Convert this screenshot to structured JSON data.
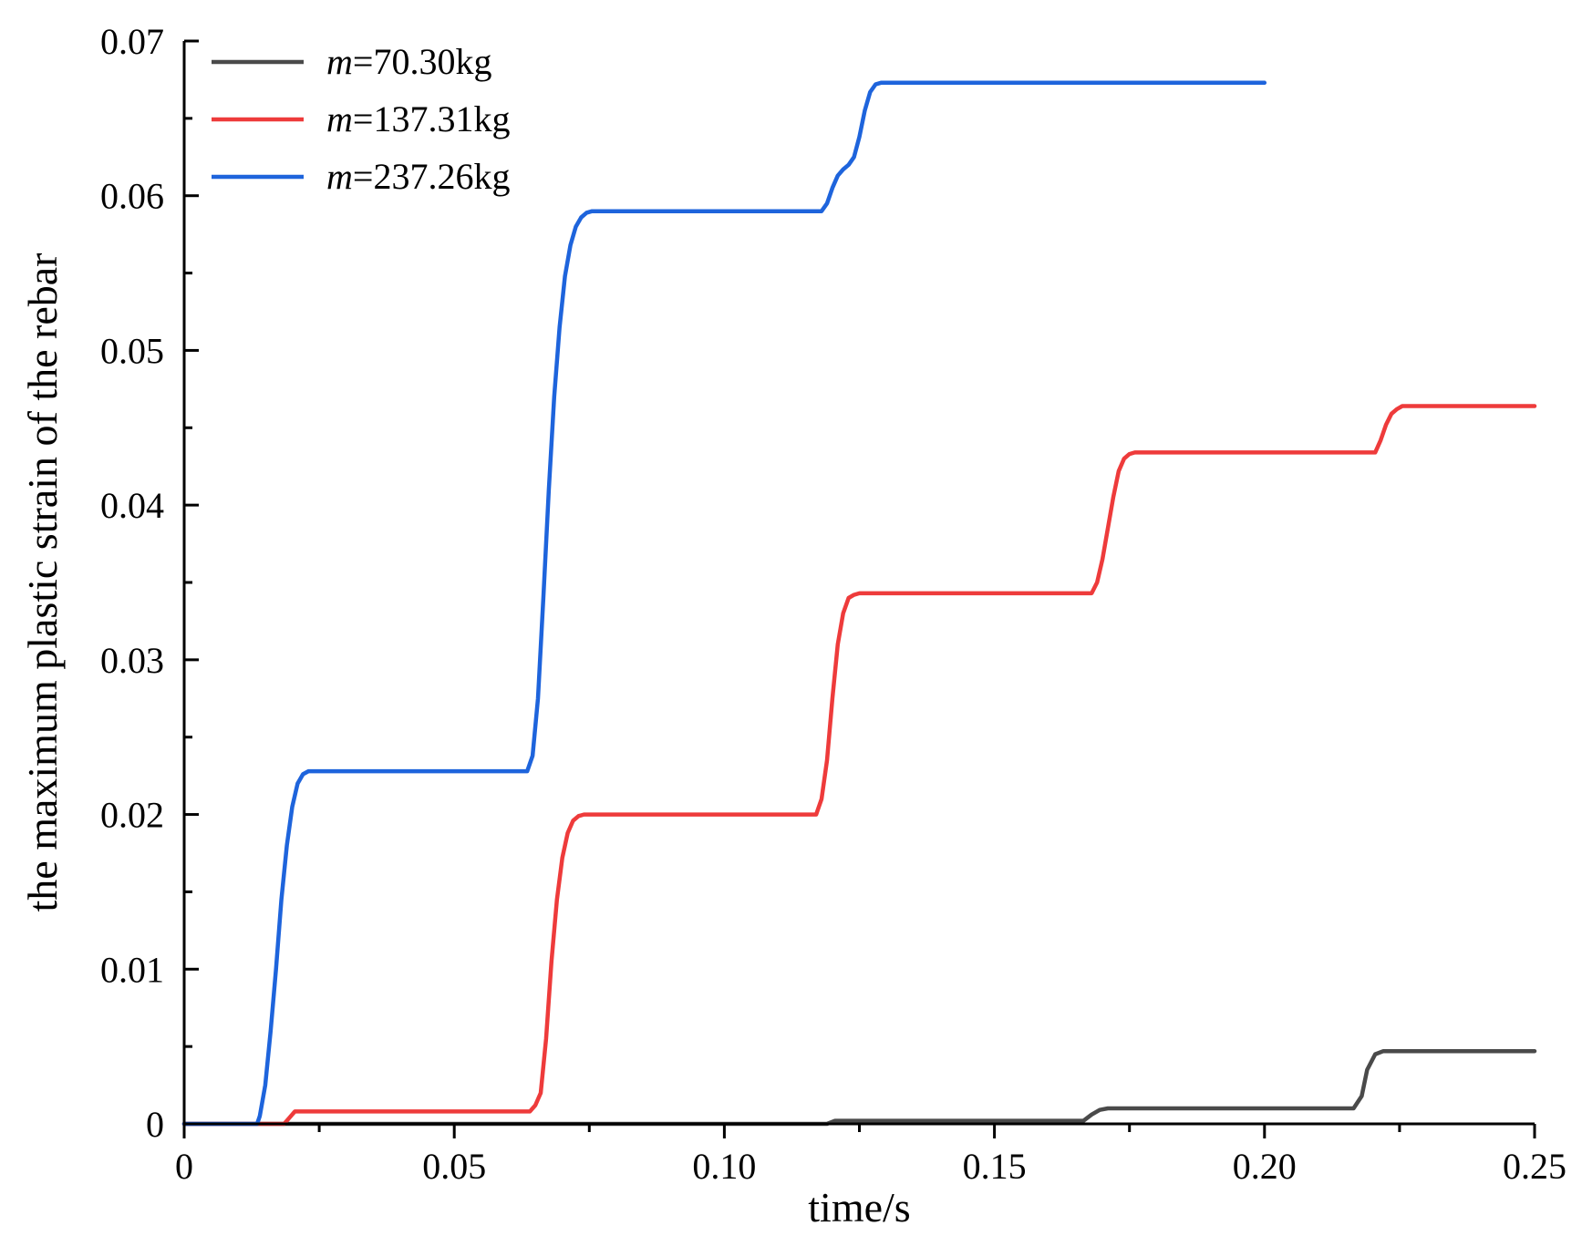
{
  "chart_data": {
    "type": "line",
    "title": "",
    "xlabel": "time/s",
    "ylabel": "the maximum plastic strain of the rebar",
    "xlim": [
      0,
      0.25
    ],
    "ylim": [
      0,
      0.07
    ],
    "x_ticks": [
      {
        "value": 0,
        "label": "0"
      },
      {
        "value": 0.05,
        "label": "0.05"
      },
      {
        "value": 0.1,
        "label": "0.10"
      },
      {
        "value": 0.15,
        "label": "0.15"
      },
      {
        "value": 0.2,
        "label": "0.20"
      },
      {
        "value": 0.25,
        "label": "0.25"
      }
    ],
    "y_ticks": [
      {
        "value": 0,
        "label": "0"
      },
      {
        "value": 0.01,
        "label": "0.01"
      },
      {
        "value": 0.02,
        "label": "0.02"
      },
      {
        "value": 0.03,
        "label": "0.03"
      },
      {
        "value": 0.04,
        "label": "0.04"
      },
      {
        "value": 0.05,
        "label": "0.05"
      },
      {
        "value": 0.06,
        "label": "0.06"
      },
      {
        "value": 0.07,
        "label": "0.07"
      }
    ],
    "grid": false,
    "legend_position": "top-left",
    "series": [
      {
        "name": "m=70.30kg",
        "name_italic": "m",
        "name_rest": "=70.30kg",
        "color": "#4a4a4a",
        "x": [
          0,
          0.119,
          0.1205,
          0.122,
          0.1665,
          0.168,
          0.1695,
          0.171,
          0.2165,
          0.218,
          0.219,
          0.2205,
          0.222,
          0.25
        ],
        "y": [
          0,
          0,
          0.0002,
          0.0002,
          0.0002,
          0.0006,
          0.0009,
          0.001,
          0.001,
          0.0018,
          0.0035,
          0.0045,
          0.0047,
          0.0047
        ]
      },
      {
        "name": "m=137.31kg",
        "name_italic": "m",
        "name_rest": "=137.31kg",
        "color": "#ee3b3b",
        "x": [
          0,
          0.0185,
          0.0195,
          0.0205,
          0.064,
          0.065,
          0.066,
          0.067,
          0.068,
          0.069,
          0.07,
          0.071,
          0.072,
          0.073,
          0.074,
          0.117,
          0.118,
          0.119,
          0.12,
          0.121,
          0.122,
          0.123,
          0.124,
          0.125,
          0.168,
          0.169,
          0.17,
          0.171,
          0.172,
          0.173,
          0.174,
          0.175,
          0.176,
          0.177,
          0.2205,
          0.2215,
          0.2225,
          0.2235,
          0.2245,
          0.2255,
          0.25
        ],
        "y": [
          0,
          0,
          0.0004,
          0.0008,
          0.0008,
          0.0012,
          0.002,
          0.0055,
          0.0105,
          0.0145,
          0.0172,
          0.0188,
          0.0196,
          0.0199,
          0.02,
          0.02,
          0.021,
          0.0235,
          0.0275,
          0.031,
          0.033,
          0.034,
          0.0342,
          0.0343,
          0.0343,
          0.035,
          0.0365,
          0.0385,
          0.0405,
          0.0422,
          0.043,
          0.0433,
          0.0434,
          0.0434,
          0.0434,
          0.0442,
          0.0452,
          0.0459,
          0.0462,
          0.0464,
          0.0464
        ]
      },
      {
        "name": "m=237.26kg",
        "name_italic": "m",
        "name_rest": "=237.26kg",
        "color": "#1e64dc",
        "x": [
          0,
          0.0135,
          0.014,
          0.015,
          0.016,
          0.017,
          0.018,
          0.019,
          0.02,
          0.021,
          0.022,
          0.023,
          0.0235,
          0.0635,
          0.0645,
          0.0655,
          0.0665,
          0.0675,
          0.0685,
          0.0695,
          0.0705,
          0.0715,
          0.0725,
          0.0735,
          0.0745,
          0.0755,
          0.0765,
          0.118,
          0.119,
          0.12,
          0.121,
          0.122,
          0.123,
          0.124,
          0.125,
          0.126,
          0.127,
          0.128,
          0.129,
          0.2
        ],
        "y": [
          0,
          0,
          0.0005,
          0.0025,
          0.006,
          0.01,
          0.0145,
          0.018,
          0.0205,
          0.022,
          0.0226,
          0.0228,
          0.0228,
          0.0228,
          0.0238,
          0.0275,
          0.034,
          0.041,
          0.047,
          0.0515,
          0.0548,
          0.0568,
          0.058,
          0.0586,
          0.0589,
          0.059,
          0.059,
          0.059,
          0.0595,
          0.0605,
          0.0613,
          0.0617,
          0.062,
          0.0625,
          0.0638,
          0.0655,
          0.0667,
          0.0672,
          0.0673,
          0.0673
        ]
      }
    ]
  }
}
